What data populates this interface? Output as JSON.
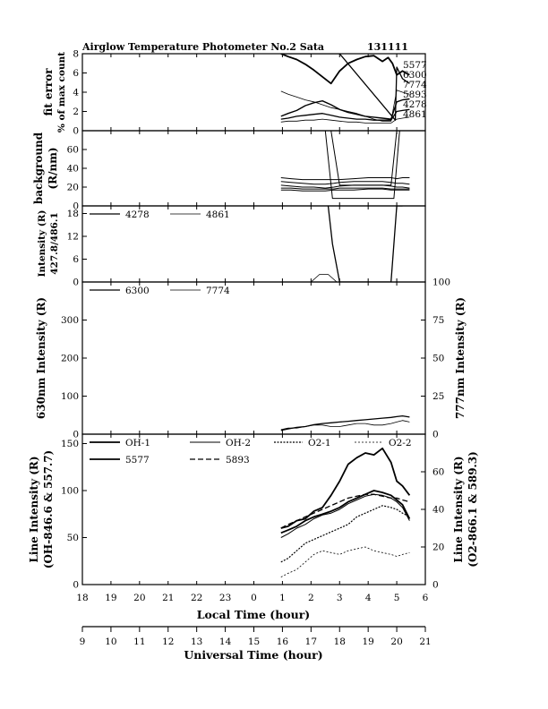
{
  "header": {
    "title": "Airglow Temperature Photometer No.2  Sata",
    "date": "131111"
  },
  "chart_data": [
    {
      "type": "line",
      "panel": "fit-error",
      "ylabel_lines": [
        "fit error",
        "% of max count"
      ],
      "ylim": [
        0,
        8
      ],
      "yticks": [
        0,
        2,
        4,
        6,
        8
      ],
      "annotations": [
        "5577",
        "6300",
        "7774",
        "5893",
        "4278",
        "4861"
      ],
      "series": [
        {
          "name": "5577",
          "x": [
            0.95,
            1.2,
            1.5,
            1.8,
            2.1,
            2.4,
            2.7,
            3.0,
            3.3,
            3.6,
            3.9,
            4.2,
            4.5,
            4.7,
            4.85,
            5.0,
            5.2,
            5.45
          ],
          "y": [
            8.2,
            7.7,
            7.4,
            6.9,
            6.3,
            5.6,
            4.9,
            6.2,
            7.0,
            7.4,
            7.7,
            7.8,
            7.2,
            7.6,
            7.0,
            5.8,
            6.2,
            5.8
          ]
        },
        {
          "name": "6300",
          "x": [
            0.95,
            1.3,
            1.6,
            2.0,
            2.3,
            2.6,
            2.9,
            3.0,
            4.95,
            5.0,
            5.2,
            5.45
          ],
          "y": [
            8.0,
            8.0,
            8.0,
            8.0,
            8.0,
            8.0,
            8.0,
            8.0,
            1.1,
            6.6,
            5.4,
            4.9
          ]
        },
        {
          "name": "7774",
          "x": [
            0.95,
            1.2,
            1.5,
            1.8,
            2.1,
            2.4,
            2.7,
            3.0,
            3.3,
            3.6,
            3.9,
            4.2,
            4.5,
            4.8,
            5.0,
            5.2,
            5.45
          ],
          "y": [
            4.1,
            3.8,
            3.5,
            3.2,
            3.0,
            2.7,
            2.4,
            2.2,
            2.0,
            1.8,
            1.5,
            1.2,
            1.0,
            1.0,
            4.2,
            4.0,
            3.8
          ]
        },
        {
          "name": "5893",
          "x": [
            0.95,
            1.2,
            1.5,
            1.8,
            2.1,
            2.4,
            2.7,
            3.0,
            3.3,
            3.6,
            3.9,
            4.2,
            4.5,
            4.8,
            5.0,
            5.2,
            5.45
          ],
          "y": [
            1.5,
            1.8,
            2.1,
            2.6,
            2.9,
            3.1,
            2.7,
            2.2,
            1.9,
            1.7,
            1.5,
            1.4,
            1.3,
            1.2,
            3.0,
            3.2,
            3.3
          ]
        },
        {
          "name": "4278",
          "x": [
            0.95,
            1.2,
            1.5,
            1.8,
            2.1,
            2.4,
            2.7,
            3.0,
            3.3,
            3.6,
            3.9,
            4.2,
            4.5,
            4.8,
            5.0,
            5.2,
            5.45
          ],
          "y": [
            1.2,
            1.3,
            1.5,
            1.6,
            1.7,
            1.8,
            1.6,
            1.4,
            1.3,
            1.2,
            1.2,
            1.1,
            1.1,
            1.1,
            2.0,
            2.1,
            2.2
          ]
        },
        {
          "name": "4861",
          "x": [
            0.95,
            1.2,
            1.5,
            1.8,
            2.1,
            2.4,
            2.7,
            3.0,
            3.3,
            3.6,
            3.9,
            4.2,
            4.5,
            4.8,
            5.0,
            5.2,
            5.45
          ],
          "y": [
            0.9,
            1.0,
            1.0,
            1.1,
            1.1,
            1.2,
            1.1,
            1.0,
            0.9,
            0.9,
            0.8,
            0.8,
            0.8,
            0.8,
            1.2,
            1.3,
            1.4
          ]
        }
      ]
    },
    {
      "type": "line",
      "panel": "background",
      "ylabel_lines": [
        "background",
        "(R/nm)"
      ],
      "ylim": [
        0,
        80
      ],
      "yticks": [
        0,
        20,
        40,
        60
      ],
      "series": [
        {
          "name": "bg-1",
          "x": [
            0.95,
            1.3,
            1.7,
            2.1,
            2.5,
            2.8,
            3.0,
            3.5,
            4.0,
            4.5,
            4.8,
            5.0,
            5.2,
            5.45
          ],
          "y": [
            30,
            29,
            28,
            28,
            28,
            28,
            28,
            29,
            30,
            30,
            30,
            29,
            30,
            30
          ]
        },
        {
          "name": "bg-2",
          "x": [
            0.95,
            1.3,
            1.7,
            2.1,
            2.5,
            2.8,
            3.0,
            3.5,
            4.0,
            4.5,
            4.8,
            5.0,
            5.2,
            5.45
          ],
          "y": [
            26,
            25,
            24,
            23,
            23,
            24,
            25,
            26,
            26,
            26,
            25,
            24,
            24,
            23
          ]
        },
        {
          "name": "bg-3",
          "x": [
            0.95,
            1.3,
            1.7,
            2.1,
            2.5,
            2.8,
            3.0,
            3.5,
            4.0,
            4.5,
            4.8,
            5.0,
            5.2,
            5.45
          ],
          "y": [
            22,
            21,
            20,
            20,
            19,
            20,
            21,
            22,
            22,
            22,
            21,
            20,
            20,
            19
          ]
        },
        {
          "name": "bg-4",
          "x": [
            0.95,
            1.3,
            1.7,
            2.1,
            2.5,
            2.8,
            3.0,
            3.5,
            4.0,
            4.5,
            4.8,
            5.0,
            5.2,
            5.45
          ],
          "y": [
            19,
            19,
            18,
            18,
            18,
            18,
            19,
            19,
            19,
            19,
            18,
            18,
            18,
            18
          ]
        },
        {
          "name": "bg-5",
          "x": [
            0.95,
            1.3,
            1.7,
            2.1,
            2.5,
            2.8,
            3.0,
            3.5,
            4.0,
            4.5,
            4.8,
            5.0,
            5.2,
            5.45
          ],
          "y": [
            17,
            17,
            16,
            16,
            16,
            17,
            17,
            17,
            18,
            18,
            17,
            17,
            17,
            17
          ]
        },
        {
          "name": "bg-6",
          "x": [
            2.7,
            3.0,
            4.8,
            5.0
          ],
          "y": [
            80,
            22,
            22,
            80
          ]
        },
        {
          "name": "bg-7",
          "x": [
            2.5,
            2.75,
            4.9,
            5.1
          ],
          "y": [
            80,
            8,
            8,
            80
          ]
        }
      ]
    },
    {
      "type": "line",
      "panel": "blue-lines",
      "ylabel_lines": [
        "Intensity (R)",
        "427.8/486.1"
      ],
      "ylim": [
        0,
        20
      ],
      "yticks": [
        0,
        6,
        12,
        18
      ],
      "legend": [
        "4278",
        "4861"
      ],
      "series": [
        {
          "name": "4278",
          "x": [
            2.6,
            2.75,
            3.0,
            3.5,
            4.0,
            4.5,
            4.8,
            5.0,
            5.2
          ],
          "y": [
            20,
            10,
            -3,
            -3,
            -3,
            -3,
            -2,
            20,
            20
          ]
        },
        {
          "name": "4861",
          "x": [
            1.0,
            1.5,
            2.0,
            2.3,
            2.6,
            2.9,
            3.2,
            3.5,
            4.0,
            4.5,
            5.0,
            5.45
          ],
          "y": [
            -1,
            0,
            -1,
            2,
            2,
            0,
            -1,
            -1,
            -1,
            0,
            -1,
            -1
          ]
        }
      ]
    },
    {
      "type": "line",
      "panel": "red-lines",
      "ylabel": "630nm Intensity (R)",
      "ylabel_right": "777nm Intensity (R)",
      "ylim": [
        0,
        400
      ],
      "ylim_right": [
        0,
        100
      ],
      "yticks": [
        0,
        100,
        200,
        300
      ],
      "yticks_right": [
        0,
        25,
        50,
        75,
        100
      ],
      "legend": [
        "6300",
        "7774"
      ],
      "series": [
        {
          "name": "6300",
          "axis": "left",
          "x": [
            0.95,
            1.2,
            1.5,
            1.8,
            2.1,
            2.4,
            2.7,
            3.0,
            3.3,
            3.6,
            3.9,
            4.2,
            4.5,
            4.8,
            5.0,
            5.2,
            5.45
          ],
          "y": [
            10,
            14,
            18,
            20,
            25,
            28,
            30,
            32,
            34,
            36,
            38,
            40,
            42,
            44,
            46,
            48,
            45
          ]
        },
        {
          "name": "7774",
          "axis": "right",
          "x": [
            0.95,
            1.2,
            1.5,
            1.8,
            2.1,
            2.4,
            2.7,
            3.0,
            3.3,
            3.6,
            3.9,
            4.2,
            4.5,
            4.8,
            5.0,
            5.2,
            5.45
          ],
          "y": [
            3,
            4,
            4,
            5,
            6,
            6,
            5,
            5,
            6,
            7,
            7,
            6,
            6,
            7,
            8,
            9,
            8
          ]
        }
      ]
    },
    {
      "type": "line",
      "panel": "line-intensity",
      "ylabel_lines": [
        "Line Intensity (R)",
        "(OH-846.6 & 557.7)"
      ],
      "ylabel_right_lines": [
        "Line Intensity (R)",
        "(O2-866.1 & 589.3)"
      ],
      "ylim": [
        0,
        160
      ],
      "ylim_right": [
        0,
        80
      ],
      "yticks": [
        0,
        50,
        100,
        150
      ],
      "yticks_right": [
        0,
        20,
        40,
        60
      ],
      "legend": [
        "OH-1",
        "OH-2",
        "O2-1",
        "O2-2",
        "5577",
        "5893"
      ],
      "series": [
        {
          "name": "OH-1",
          "axis": "left",
          "x": [
            0.95,
            1.2,
            1.5,
            1.8,
            2.1,
            2.4,
            2.7,
            3.0,
            3.3,
            3.6,
            3.9,
            4.2,
            4.5,
            4.8,
            5.0,
            5.2,
            5.45
          ],
          "y": [
            55,
            58,
            62,
            68,
            72,
            75,
            78,
            82,
            88,
            92,
            96,
            100,
            98,
            95,
            90,
            85,
            70
          ]
        },
        {
          "name": "OH-2",
          "axis": "left",
          "x": [
            0.95,
            1.2,
            1.5,
            1.8,
            2.1,
            2.4,
            2.7,
            3.0,
            3.3,
            3.6,
            3.9,
            4.2,
            4.5,
            4.8,
            5.0,
            5.2,
            5.45
          ],
          "y": [
            50,
            54,
            60,
            64,
            70,
            74,
            76,
            80,
            86,
            90,
            94,
            96,
            95,
            92,
            88,
            82,
            68
          ]
        },
        {
          "name": "O2-1",
          "axis": "right",
          "x": [
            0.95,
            1.2,
            1.5,
            1.8,
            2.1,
            2.4,
            2.7,
            3.0,
            3.3,
            3.6,
            3.9,
            4.2,
            4.5,
            4.8,
            5.0,
            5.2,
            5.45
          ],
          "y": [
            12,
            14,
            18,
            22,
            24,
            26,
            28,
            30,
            32,
            36,
            38,
            40,
            42,
            41,
            40,
            38,
            36
          ]
        },
        {
          "name": "O2-2",
          "axis": "right",
          "x": [
            0.95,
            1.2,
            1.5,
            1.8,
            2.1,
            2.4,
            2.7,
            3.0,
            3.3,
            3.6,
            3.9,
            4.2,
            4.5,
            4.8,
            5.0,
            5.2,
            5.45
          ],
          "y": [
            4,
            6,
            8,
            12,
            16,
            18,
            17,
            16,
            18,
            19,
            20,
            18,
            17,
            16,
            15,
            16,
            17
          ]
        },
        {
          "name": "5577",
          "axis": "left",
          "x": [
            0.95,
            1.2,
            1.5,
            1.8,
            2.1,
            2.4,
            2.7,
            3.0,
            3.3,
            3.6,
            3.9,
            4.2,
            4.5,
            4.8,
            5.0,
            5.2,
            5.45
          ],
          "y": [
            60,
            62,
            68,
            70,
            78,
            82,
            95,
            110,
            128,
            135,
            140,
            138,
            145,
            130,
            110,
            105,
            95
          ]
        },
        {
          "name": "5893",
          "axis": "right",
          "x": [
            0.95,
            1.2,
            1.5,
            1.8,
            2.1,
            2.4,
            2.7,
            3.0,
            3.3,
            3.6,
            3.9,
            4.2,
            4.5,
            4.8,
            5.0,
            5.2,
            5.45
          ],
          "y": [
            30,
            32,
            34,
            36,
            38,
            40,
            42,
            44,
            46,
            47,
            48,
            48,
            47,
            46,
            46,
            45,
            44
          ]
        }
      ]
    }
  ],
  "axes": {
    "local_time": {
      "label": "Local Time (hour)",
      "ticks": [
        "18",
        "19",
        "20",
        "21",
        "22",
        "23",
        "0",
        "1",
        "2",
        "3",
        "4",
        "5",
        "6"
      ]
    },
    "universal_time": {
      "label": "Universal Time (hour)",
      "ticks": [
        "9",
        "10",
        "11",
        "12",
        "13",
        "14",
        "15",
        "16",
        "17",
        "18",
        "19",
        "20",
        "21"
      ]
    }
  }
}
